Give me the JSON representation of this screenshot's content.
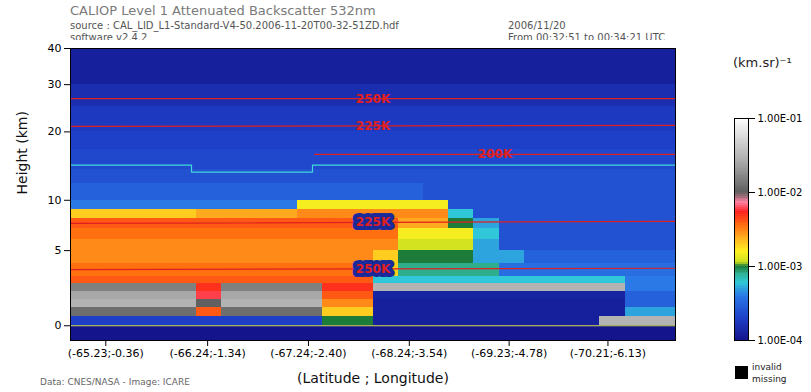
{
  "chart_data": {
    "type": "heatmap",
    "title": "CALIOP Level 1 Attenuated Backscatter 532nm",
    "header": {
      "source": "source : CAL_LID_L1-Standard-V4-50.2006-11-20T00-32-51ZD.hdf",
      "software": "software v2.4.2",
      "date": "2006/11/20",
      "time": "From 00:32:51 to 00:34:21 UTC"
    },
    "credit": "Data: CNES/NASA - Image: ICARE",
    "x_label": "(Latitude ; Longitude)",
    "y_label": "Height (km)",
    "xlim": [
      -64.88,
      -70.88
    ],
    "xticks": [
      {
        "value": -65.23,
        "label": "(-65.23;-0.36)"
      },
      {
        "value": -66.24,
        "label": "(-66.24;-1.34)"
      },
      {
        "value": -67.24,
        "label": "(-67.24;-2.40)"
      },
      {
        "value": -68.24,
        "label": "(-68.24;-3.54)"
      },
      {
        "value": -69.23,
        "label": "(-69.23;-4.78)"
      },
      {
        "value": -70.21,
        "label": "(-70.21;-6.13)"
      }
    ],
    "ylim": [
      -0.8,
      40
    ],
    "yticks": [
      0,
      5,
      10,
      20,
      30,
      40
    ],
    "cells": {
      "x_edges": [
        -64.88,
        -65.13,
        -65.38,
        -65.63,
        -65.88,
        -66.13,
        -66.38,
        -66.63,
        -66.88,
        -67.13,
        -67.38,
        -67.63,
        -67.88,
        -68.13,
        -68.38,
        -68.63,
        -68.88,
        -69.13,
        -69.38,
        -69.63,
        -69.88,
        -70.13,
        -70.38,
        -70.63,
        -70.88
      ],
      "y_edges": [
        -0.8,
        0,
        0.5,
        1,
        1.5,
        2,
        2.5,
        3,
        4,
        5,
        6,
        7,
        8,
        9,
        10,
        12,
        14,
        17,
        20,
        25,
        30,
        40
      ],
      "values": [
        [
          0.0001,
          0.0001,
          0.0001,
          0.0001,
          0.0001,
          0.0001,
          0.0001,
          0.0001,
          0.0001,
          0.0001,
          0.0001,
          0.0001,
          0.0001,
          0.0001,
          0.0001,
          0.0001,
          0.0001,
          0.0001,
          0.0001,
          0.0001,
          0.0001,
          0.0001,
          0.0001,
          0.0001
        ],
        [
          0.0002,
          0.0002,
          0.0002,
          0.0002,
          0.0002,
          0.0002,
          0.0002,
          0.0002,
          0.0002,
          0.0002,
          0.001,
          0.001,
          0.00012,
          0.00012,
          0.00012,
          0.00012,
          0.00012,
          0.00012,
          0.00012,
          0.00012,
          0.00012,
          0.03,
          0.03,
          0.03
        ],
        [
          0.012,
          0.012,
          0.012,
          0.012,
          0.012,
          0.004,
          0.012,
          0.012,
          0.012,
          0.012,
          0.002,
          0.002,
          0.00012,
          0.00012,
          0.00012,
          0.00012,
          0.00012,
          0.00012,
          0.00012,
          0.00012,
          0.00012,
          0.00012,
          0.0005,
          0.0005
        ],
        [
          0.03,
          0.03,
          0.03,
          0.03,
          0.03,
          0.01,
          0.03,
          0.03,
          0.03,
          0.03,
          0.003,
          0.003,
          0.00012,
          0.00012,
          0.00012,
          0.00012,
          0.00012,
          0.00012,
          0.00012,
          0.00012,
          0.00012,
          0.00012,
          0.0003,
          0.0003
        ],
        [
          0.025,
          0.025,
          0.025,
          0.025,
          0.025,
          0.006,
          0.025,
          0.025,
          0.025,
          0.025,
          0.004,
          0.004,
          0.00013,
          0.00013,
          0.00013,
          0.00013,
          0.00013,
          0.00013,
          0.00013,
          0.00013,
          0.00013,
          0.00013,
          0.0003,
          0.0003
        ],
        [
          0.015,
          0.015,
          0.015,
          0.015,
          0.015,
          0.005,
          0.015,
          0.015,
          0.015,
          0.015,
          0.005,
          0.005,
          0.03,
          0.03,
          0.03,
          0.03,
          0.03,
          0.03,
          0.03,
          0.03,
          0.03,
          0.03,
          0.0004,
          0.0004
        ],
        [
          0.004,
          0.004,
          0.004,
          0.004,
          0.004,
          0.004,
          0.004,
          0.004,
          0.004,
          0.004,
          0.004,
          0.004,
          0.0006,
          0.0006,
          0.0006,
          0.0006,
          0.0006,
          0.0006,
          0.0006,
          0.0006,
          0.0006,
          0.0006,
          0.0004,
          0.0004
        ],
        [
          0.0035,
          0.0035,
          0.0035,
          0.0035,
          0.0035,
          0.0035,
          0.0035,
          0.0035,
          0.0035,
          0.0035,
          0.0035,
          0.0035,
          0.002,
          0.0008,
          0.0008,
          0.0008,
          0.0008,
          0.00035,
          0.00035,
          0.00035,
          0.00035,
          0.00035,
          0.00035,
          0.00035
        ],
        [
          0.003,
          0.003,
          0.003,
          0.003,
          0.003,
          0.003,
          0.003,
          0.003,
          0.003,
          0.003,
          0.003,
          0.003,
          0.002,
          0.001,
          0.001,
          0.001,
          0.0005,
          0.0005,
          0.0003,
          0.0003,
          0.0003,
          0.0003,
          0.0003,
          0.0003
        ],
        [
          0.003,
          0.003,
          0.003,
          0.003,
          0.003,
          0.003,
          0.003,
          0.003,
          0.003,
          0.003,
          0.003,
          0.003,
          0.003,
          0.0012,
          0.0012,
          0.0012,
          0.0005,
          0.00025,
          0.00025,
          0.00025,
          0.00025,
          0.00025,
          0.00025,
          0.00025
        ],
        [
          0.0035,
          0.0035,
          0.0035,
          0.0035,
          0.0035,
          0.0035,
          0.0035,
          0.0035,
          0.0035,
          0.0035,
          0.0035,
          0.0035,
          0.0035,
          0.0015,
          0.0015,
          0.0015,
          0.0006,
          0.00025,
          0.00025,
          0.00025,
          0.00025,
          0.00025,
          0.00025,
          0.00025
        ],
        [
          0.004,
          0.004,
          0.004,
          0.004,
          0.004,
          0.004,
          0.004,
          0.004,
          0.004,
          0.004,
          0.004,
          0.004,
          0.004,
          0.0025,
          0.0025,
          0.001,
          0.0005,
          0.00025,
          0.00025,
          0.00025,
          0.00025,
          0.00025,
          0.00025,
          0.00025
        ],
        [
          0.002,
          0.002,
          0.002,
          0.002,
          0.002,
          0.0025,
          0.0025,
          0.0025,
          0.0025,
          0.003,
          0.003,
          0.003,
          0.003,
          0.003,
          0.003,
          0.0006,
          0.00025,
          0.00025,
          0.00025,
          0.00025,
          0.00025,
          0.00025,
          0.00025,
          0.00025
        ],
        [
          0.0004,
          0.0004,
          0.0004,
          0.0004,
          0.0004,
          0.0004,
          0.0004,
          0.0004,
          0.0004,
          0.0015,
          0.0015,
          0.0015,
          0.0015,
          0.0015,
          0.0015,
          0.00025,
          0.00025,
          0.00025,
          0.00025,
          0.00025,
          0.00025,
          0.00025,
          0.00025,
          0.00025
        ],
        [
          0.0003,
          0.0003,
          0.0003,
          0.0003,
          0.0003,
          0.0003,
          0.0003,
          0.0003,
          0.0003,
          0.0003,
          0.0003,
          0.0003,
          0.0003,
          0.0003,
          0.00025,
          0.00025,
          0.00025,
          0.00025,
          0.00025,
          0.00025,
          0.00025,
          0.00025,
          0.00025,
          0.00025
        ],
        [
          0.00025,
          0.00025,
          0.00025,
          0.00025,
          0.00025,
          0.00025,
          0.00025,
          0.00025,
          0.00025,
          0.00025,
          0.00025,
          0.00025,
          0.00025,
          0.00025,
          0.00025,
          0.00025,
          0.00025,
          0.00025,
          0.00025,
          0.00025,
          0.00025,
          0.00025,
          0.00025,
          0.00025
        ],
        [
          0.00022,
          0.00022,
          0.00022,
          0.00022,
          0.00022,
          0.00022,
          0.00022,
          0.00022,
          0.00022,
          0.00022,
          0.00022,
          0.00022,
          0.00022,
          0.00022,
          0.00022,
          0.00022,
          0.00022,
          0.00022,
          0.00022,
          0.00022,
          0.00022,
          0.00022,
          0.00022,
          0.00022
        ],
        [
          0.0002,
          0.0002,
          0.0002,
          0.0002,
          0.0002,
          0.0002,
          0.0002,
          0.0002,
          0.0002,
          0.0002,
          0.0002,
          0.0002,
          0.0002,
          0.0002,
          0.0002,
          0.0002,
          0.0002,
          0.0002,
          0.0002,
          0.0002,
          0.0002,
          0.0002,
          0.0002,
          0.0002
        ],
        [
          0.00018,
          0.00018,
          0.00018,
          0.00018,
          0.00018,
          0.00018,
          0.00018,
          0.00018,
          0.00018,
          0.00018,
          0.00018,
          0.00018,
          0.00018,
          0.00018,
          0.00018,
          0.00018,
          0.00018,
          0.00018,
          0.00018,
          0.00018,
          0.00018,
          0.00018,
          0.00018,
          0.00018
        ],
        [
          0.00015,
          0.00015,
          0.00015,
          0.00015,
          0.00015,
          0.00015,
          0.00015,
          0.00015,
          0.00015,
          0.00015,
          0.00015,
          0.00015,
          0.00015,
          0.00015,
          0.00015,
          0.00015,
          0.00015,
          0.00015,
          0.00015,
          0.00015,
          0.00015,
          0.00015,
          0.00015,
          0.00015
        ],
        [
          0.00012,
          0.00012,
          0.00012,
          0.00012,
          0.00012,
          0.00012,
          0.00012,
          0.00012,
          0.00012,
          0.00012,
          0.00012,
          0.00012,
          0.00012,
          0.00012,
          0.00012,
          0.00012,
          0.00012,
          0.00012,
          0.00012,
          0.00012,
          0.00012,
          0.00012,
          0.00012,
          0.00012
        ]
      ]
    },
    "colorbar": {
      "label": "(km.sr)⁻¹",
      "range": [
        0.0001,
        0.1
      ],
      "log": true,
      "ticks": [
        {
          "value": 0.1,
          "label": "1.00E-01"
        },
        {
          "value": 0.01,
          "label": "1.00E-02"
        },
        {
          "value": 0.001,
          "label": "1.00E-03"
        },
        {
          "value": 0.0001,
          "label": "1.00E-04"
        }
      ]
    },
    "missing_labels": [
      "invalid",
      "missing"
    ],
    "lines": [
      {
        "name": "250K",
        "color": "#e02020",
        "values": [
          [
            -64.88,
            26.7
          ],
          [
            -70.88,
            26.7
          ]
        ]
      },
      {
        "name": "225K",
        "color": "#e02020",
        "values": [
          [
            -64.88,
            21.0
          ],
          [
            -70.88,
            21.2
          ]
        ]
      },
      {
        "name": "200K",
        "color": "#e02020",
        "values": [
          [
            -67.3,
            16.2
          ],
          [
            -70.88,
            16.2
          ]
        ]
      },
      {
        "name": "225K",
        "color": "#e02020",
        "values": [
          [
            -64.88,
            7.5
          ],
          [
            -70.88,
            7.7
          ]
        ]
      },
      {
        "name": "250K",
        "color": "#e02020",
        "values": [
          [
            -64.88,
            3.5
          ],
          [
            -70.88,
            3.6
          ]
        ]
      },
      {
        "color": "#40d8d8",
        "values": [
          [
            -64.88,
            14.6
          ],
          [
            -66.08,
            14.6
          ],
          [
            -66.08,
            13.6
          ],
          [
            -67.28,
            13.6
          ],
          [
            -67.28,
            14.6
          ],
          [
            -70.88,
            14.6
          ]
        ]
      },
      {
        "color": "#d8e050",
        "values": [
          [
            -64.88,
            0
          ],
          [
            -70.88,
            0
          ]
        ]
      }
    ]
  }
}
